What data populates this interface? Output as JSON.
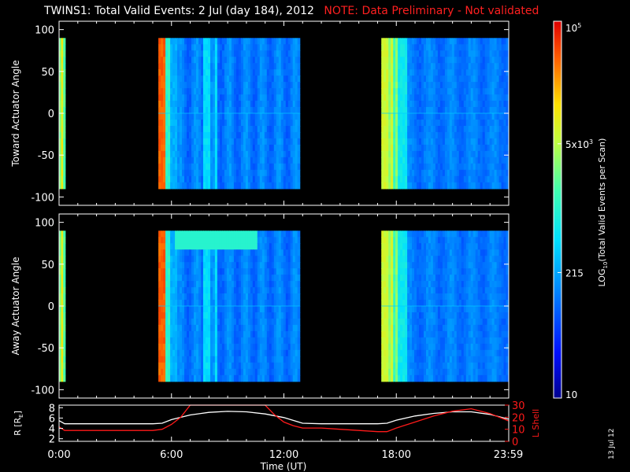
{
  "header": {
    "title": "TWINS1: Total Valid Events:  2 Jul (day 184), 2012",
    "note": "NOTE: Data Preliminary - Not validated"
  },
  "footer": {
    "date_stamp": "13 Jul 12"
  },
  "colors": {
    "background": "#000000",
    "axes": "#ffffff",
    "note": "#ff2020",
    "r_line": "#ffffff",
    "lshell_line": "#ff1a1a"
  },
  "chart_data": [
    {
      "type": "heatmap",
      "ylabel": "Toward Actuator Angle",
      "ylim": [
        -110,
        110
      ],
      "yticks": [
        -100,
        -50,
        0,
        50,
        100
      ],
      "xlim": [
        0,
        24
      ],
      "colorscale": "log",
      "coverage": [
        {
          "start": 0.0,
          "end": 0.33,
          "level": 0.55,
          "profile": "early"
        },
        {
          "start": 5.3,
          "end": 12.85,
          "level": 0.27,
          "profile": "mid"
        },
        {
          "start": 17.2,
          "end": 23.98,
          "level": 0.27,
          "profile": "late"
        }
      ]
    },
    {
      "type": "heatmap",
      "ylabel": "Away Actuator Angle",
      "ylim": [
        -110,
        110
      ],
      "yticks": [
        -100,
        -50,
        0,
        50,
        100
      ],
      "xlim": [
        0,
        24
      ],
      "colorscale": "log",
      "coverage": [
        {
          "start": 0.0,
          "end": 0.33,
          "level": 0.55,
          "profile": "early"
        },
        {
          "start": 5.3,
          "end": 12.85,
          "level": 0.27,
          "profile": "mid"
        },
        {
          "start": 17.2,
          "end": 23.98,
          "level": 0.27,
          "profile": "late"
        }
      ]
    },
    {
      "type": "line",
      "xlabel": "Time (UT)",
      "xlim": [
        0,
        24
      ],
      "xticks": [
        "0:00",
        "6:00",
        "12:00",
        "18:00",
        "23:59"
      ],
      "xtick_values": [
        0,
        6,
        12,
        18,
        23.98
      ],
      "ylabel": "R [R_E]",
      "ylabel_main": "R [R",
      "ylabel_sub": "E",
      "ylabel_close": "]",
      "ylim": [
        1.5,
        8.5
      ],
      "yticks": [
        2,
        4,
        6,
        8
      ],
      "ylabel_right": "L Shell",
      "ylim_right": [
        0,
        30
      ],
      "yticks_right": [
        0,
        10,
        20,
        30
      ],
      "series": [
        {
          "axis": "left",
          "x": [
            0,
            0.3,
            1,
            2,
            3,
            4,
            5,
            5.5,
            6,
            7,
            8,
            9,
            10,
            11,
            12,
            13,
            14,
            15,
            16,
            17,
            17.5,
            18,
            19,
            20,
            21,
            22,
            23,
            23.98
          ],
          "y": [
            5.5,
            4.9,
            4.9,
            4.9,
            4.9,
            4.9,
            4.9,
            5.0,
            5.7,
            6.6,
            7.1,
            7.3,
            7.2,
            6.8,
            6.1,
            5.0,
            4.9,
            4.9,
            4.9,
            4.9,
            5.0,
            5.6,
            6.4,
            6.9,
            7.2,
            7.2,
            6.7,
            5.8
          ]
        },
        {
          "axis": "right",
          "x": [
            0,
            0.3,
            1,
            2,
            3,
            4,
            5,
            5.5,
            6,
            6.5,
            7,
            11,
            11.5,
            12,
            12.5,
            13,
            14,
            15,
            16,
            17,
            17.5,
            18,
            19,
            20,
            21,
            22,
            23,
            23.98
          ],
          "y": [
            12,
            9,
            9,
            9,
            9,
            9,
            9,
            10,
            14,
            20,
            30,
            30,
            22,
            16,
            13,
            11,
            11,
            10,
            9,
            8,
            8,
            11,
            16,
            21,
            25,
            27,
            23,
            17
          ]
        }
      ]
    },
    {
      "type": "colorbar",
      "label": "LOG10(Total Valid Events per Scan)",
      "label_main": "LOG",
      "label_sub": "10",
      "label_rest": "(Total Valid Events per Scan)",
      "scale": "log",
      "range": [
        10,
        100000
      ],
      "ticks": [
        {
          "value": 10,
          "label": "10"
        },
        {
          "value": 215,
          "label": "215"
        },
        {
          "value": 5000,
          "label": "5x10",
          "exp": "3"
        },
        {
          "value": 100000,
          "label": "10",
          "exp": "5"
        }
      ]
    }
  ]
}
